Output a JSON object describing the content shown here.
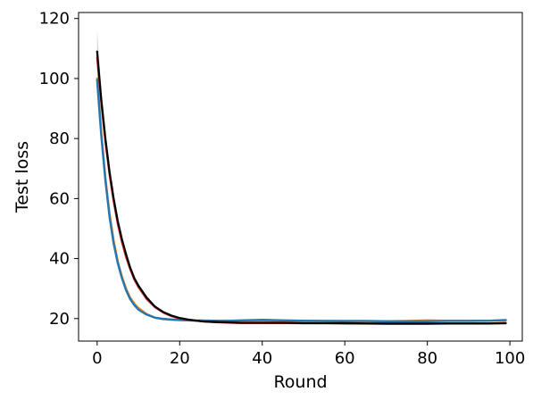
{
  "chart_data": {
    "type": "line",
    "title": "",
    "xlabel": "Round",
    "ylabel": "Test loss",
    "xlim": [
      -4.5,
      103
    ],
    "ylim": [
      12.5,
      122
    ],
    "x_ticks": [
      0,
      20,
      40,
      60,
      80,
      100
    ],
    "y_ticks": [
      20,
      40,
      60,
      80,
      100,
      120
    ],
    "x_tick_labels": [
      "0",
      "20",
      "40",
      "60",
      "80",
      "100"
    ],
    "y_tick_labels": [
      "20",
      "40",
      "60",
      "80",
      "100",
      "120"
    ],
    "grid": false,
    "legend": "none",
    "x": [
      0,
      1,
      2,
      3,
      4,
      5,
      6,
      7,
      8,
      9,
      10,
      12,
      14,
      16,
      18,
      20,
      22,
      24,
      26,
      28,
      30,
      35,
      40,
      45,
      50,
      55,
      60,
      65,
      70,
      75,
      80,
      85,
      90,
      95,
      99
    ],
    "series": [
      {
        "color": "#ff7f0e",
        "values": [
          100,
          82,
          67,
          55,
          46,
          39,
          34,
          30,
          27,
          25,
          23.5,
          21.5,
          20.3,
          19.8,
          19.6,
          19.5,
          19.4,
          19.4,
          19.4,
          19.3,
          19.3,
          19.3,
          19.3,
          19.2,
          19.2,
          19.2,
          19.1,
          19.1,
          19.1,
          19.2,
          19.4,
          19.3,
          19.3,
          19.3,
          19.3
        ]
      },
      {
        "color": "#1f77b4",
        "values": [
          99.5,
          81,
          66,
          54,
          45,
          38.5,
          33.5,
          29.5,
          26.5,
          24.5,
          23,
          21.3,
          20.3,
          19.9,
          19.7,
          19.5,
          19.4,
          19.3,
          19.2,
          19.3,
          19.2,
          19.4,
          19.6,
          19.4,
          19.3,
          19.2,
          19.2,
          19.2,
          19.1,
          19.1,
          19.1,
          19.2,
          19.2,
          19.3,
          19.5
        ]
      },
      {
        "color": "#d62728",
        "values": [
          107,
          92,
          79,
          68,
          59,
          51.5,
          45.5,
          40.5,
          36.5,
          33,
          30.5,
          26.5,
          23.8,
          22,
          20.8,
          20,
          19.6,
          19.3,
          19,
          18.8,
          18.7,
          18.5,
          18.5,
          18.5,
          18.4,
          18.4,
          18.3,
          18.3,
          18.2,
          18.2,
          18.2,
          18.3,
          18.3,
          18.3,
          18.4
        ]
      },
      {
        "color": "#000000",
        "values": [
          109,
          93,
          80,
          69,
          60,
          52.5,
          46.5,
          41.5,
          37,
          33.5,
          31,
          27,
          24,
          22.2,
          21,
          20.2,
          19.7,
          19.3,
          19,
          18.9,
          18.8,
          18.6,
          18.6,
          18.6,
          18.5,
          18.5,
          18.5,
          18.4,
          18.4,
          18.4,
          18.4,
          18.4,
          18.4,
          18.4,
          18.5
        ]
      }
    ],
    "uncertainty_band": {
      "color": "#b0b0b0",
      "x": [
        0,
        1,
        2,
        3,
        4
      ],
      "upper": [
        116,
        97,
        83,
        71,
        61
      ],
      "lower": [
        101,
        88,
        76,
        66,
        57
      ]
    }
  }
}
